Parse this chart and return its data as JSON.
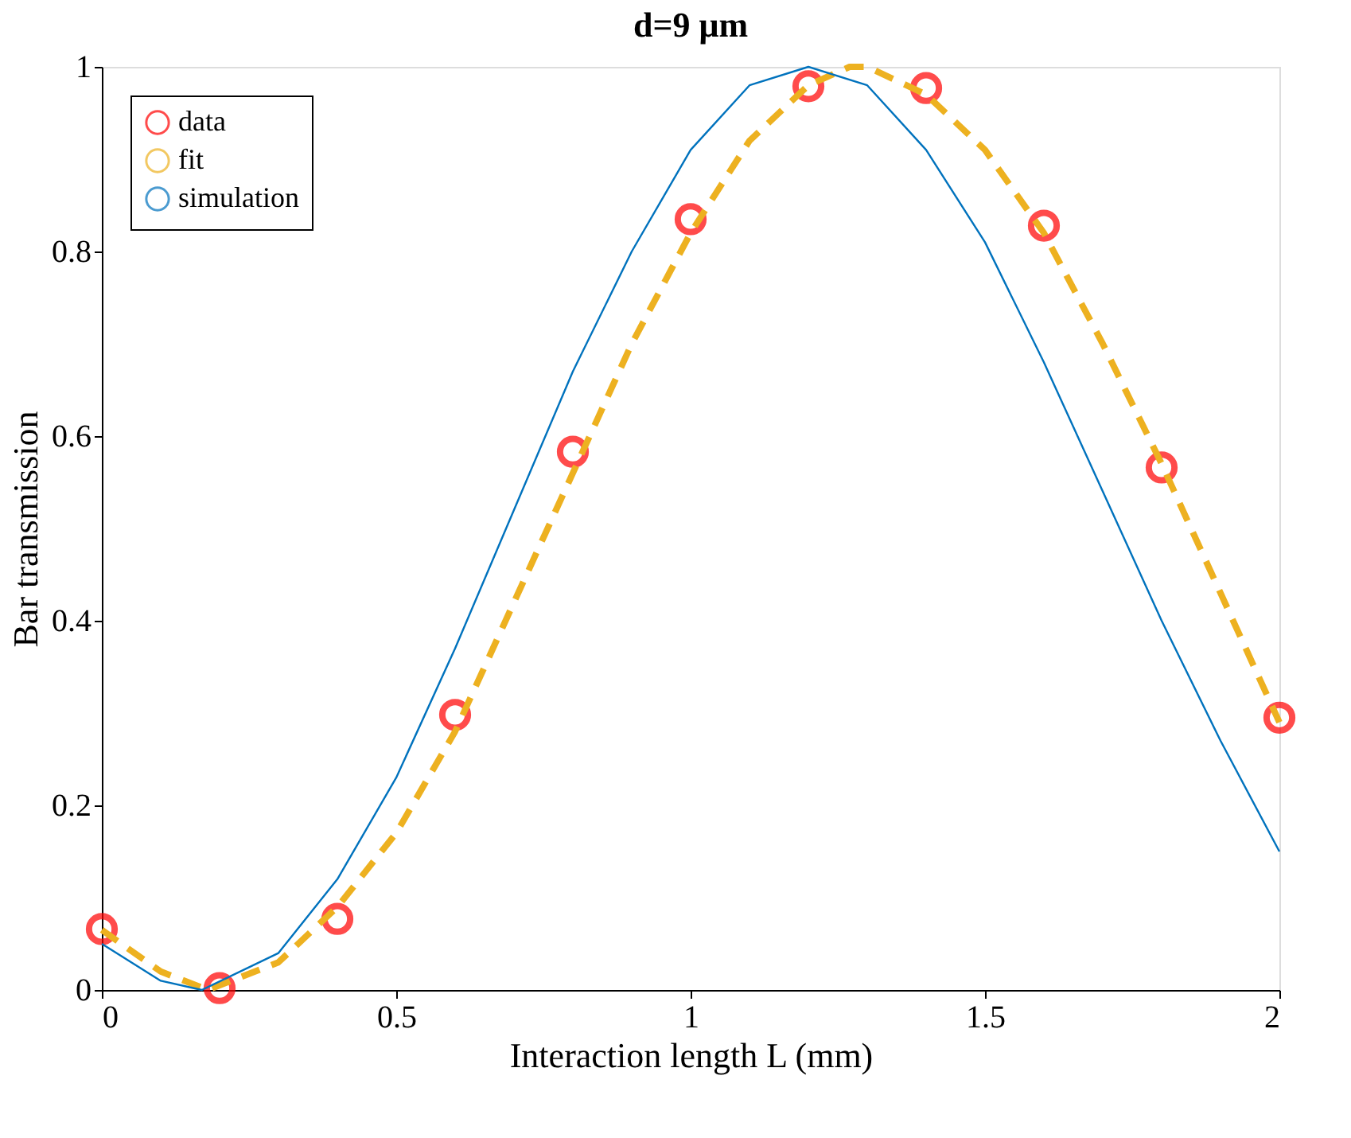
{
  "chart_data": {
    "type": "line",
    "title": "d=9 μm",
    "xlabel": "Interaction length L (mm)",
    "ylabel": "Bar transmission",
    "xlim": [
      0,
      2
    ],
    "ylim": [
      0,
      1
    ],
    "xticks": [
      0,
      0.5,
      1,
      1.5,
      2
    ],
    "yticks": [
      0,
      0.2,
      0.4,
      0.6,
      0.8,
      1
    ],
    "grid": false,
    "legend": "top left",
    "series": [
      {
        "name": "data",
        "type": "scatter",
        "marker": "circle",
        "color": "#ff0000",
        "x": [
          0,
          0.2,
          0.4,
          0.6,
          0.8,
          1.0,
          1.2,
          1.4,
          1.6,
          1.8,
          2.0
        ],
        "values": [
          0.066,
          0.002,
          0.077,
          0.298,
          0.583,
          0.835,
          0.979,
          0.977,
          0.828,
          0.566,
          0.295
        ]
      },
      {
        "name": "fit",
        "line_style": "dashed",
        "color": "#edb120",
        "x": [
          0,
          0.1,
          0.18,
          0.3,
          0.4,
          0.5,
          0.6,
          0.7,
          0.8,
          0.9,
          1.0,
          1.1,
          1.2,
          1.27,
          1.3,
          1.4,
          1.5,
          1.6,
          1.7,
          1.8,
          1.9,
          2.0
        ],
        "values": [
          0.065,
          0.02,
          0,
          0.03,
          0.09,
          0.17,
          0.28,
          0.42,
          0.56,
          0.7,
          0.82,
          0.92,
          0.98,
          1.0,
          1.0,
          0.97,
          0.91,
          0.82,
          0.7,
          0.57,
          0.43,
          0.29
        ]
      },
      {
        "name": "simulation",
        "line_style": "solid",
        "color": "#0072bd",
        "x": [
          0,
          0.1,
          0.17,
          0.3,
          0.4,
          0.5,
          0.6,
          0.7,
          0.8,
          0.9,
          1.0,
          1.1,
          1.2,
          1.3,
          1.4,
          1.5,
          1.6,
          1.7,
          1.8,
          1.9,
          2.0
        ],
        "values": [
          0.05,
          0.01,
          0,
          0.04,
          0.12,
          0.23,
          0.37,
          0.52,
          0.67,
          0.8,
          0.91,
          0.98,
          1.0,
          0.98,
          0.91,
          0.81,
          0.68,
          0.54,
          0.4,
          0.27,
          0.15
        ]
      }
    ]
  }
}
